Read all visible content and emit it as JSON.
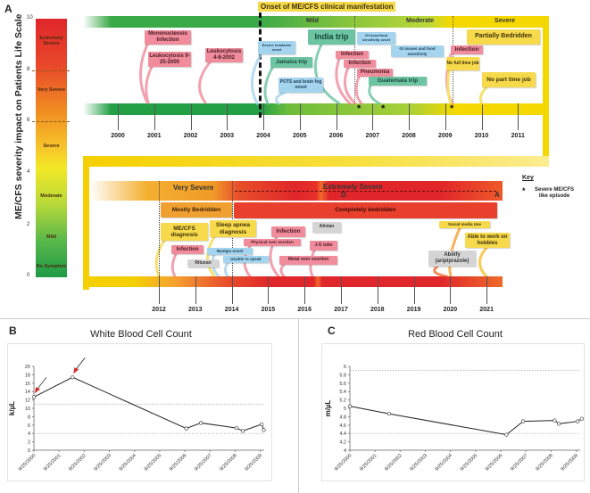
{
  "panel_a": {
    "label": "A",
    "y_axis_title": "ME/CFS severity impact on Patients Life Scale",
    "scale_ticks": [
      "10",
      "8",
      "6",
      "4",
      "2",
      "0"
    ],
    "scale_levels": [
      "Extremely Severe",
      "Very Severe",
      "Severe",
      "Moderate",
      "Mild",
      "No Symptom"
    ],
    "onset_label": "Onset of ME/CFS clinical manifestation",
    "top_phases": [
      "Mild",
      "Moderate",
      "Severe"
    ],
    "top_years": [
      "2000",
      "2001",
      "2002",
      "2003",
      "2004",
      "2005",
      "2006",
      "2007",
      "2008",
      "2009",
      "2010",
      "2011"
    ],
    "top_events": [
      "Mononucleosis Infection",
      "Leukocytosis 9-25-2000",
      "Leukocytosis 4-8-2002",
      "Severe headache onset",
      "Jamaica trip",
      "POTS and brain fog onset",
      "India trip",
      "GI issue/food sensitivity onset",
      "Infection",
      "Infection",
      "Pneumonia",
      "GI issues and food sensitivity",
      "Guatemala trip",
      "Infection",
      "No full time job",
      "Partially Bedridden",
      "No part time job"
    ],
    "bottom_phases": [
      "Very Severe",
      "Extremely Severe"
    ],
    "bottom_phase_marks": [
      "D",
      "A"
    ],
    "bottom_status": [
      "Mostly Bedridden",
      "Completely bedridden"
    ],
    "bottom_years": [
      "2012",
      "2013",
      "2014",
      "2015",
      "2016",
      "2017",
      "2018",
      "2019",
      "2020",
      "2021"
    ],
    "bottom_events": [
      "ME/CFS diagnosis",
      "Sleep apnea diagnosis",
      "Infection",
      "Myalgia onset",
      "Unable to speak",
      "Rituxan",
      "Physical over exertion",
      "Infection",
      "Ativian",
      "J-G tube",
      "Metal over exertion",
      "Social media Use",
      "Able to work on hobbies",
      "Abilify (aripiprazole)"
    ],
    "episode_marker": "*",
    "key": {
      "title": "Key",
      "symbol": "*",
      "text": "Severe ME/CFS like episode"
    },
    "colors": {
      "mild": "#3aaa48",
      "moderate": "#a8d03a",
      "severe": "#f5d400",
      "very_severe": "#f09a28",
      "extremely_severe": "#e0262a"
    }
  },
  "chart_data": [
    {
      "panel": "B",
      "type": "line",
      "title": "White Blood Cell Count",
      "ylabel": "k/µL",
      "xlabel": "",
      "ylim": [
        0,
        20
      ],
      "yticks": [
        "0",
        "2",
        "4",
        "6",
        "8",
        "10",
        "12",
        "14",
        "16",
        "18",
        "20"
      ],
      "xticks": [
        "9/25/2000",
        "9/25/2001",
        "9/25/2002",
        "9/25/2003",
        "9/25/2004",
        "9/25/2005",
        "9/25/2006",
        "9/25/2007",
        "9/25/2008",
        "9/25/2009"
      ],
      "reference_lines": [
        11,
        4
      ],
      "points": [
        {
          "x": "2000-09-25",
          "y": 12.7
        },
        {
          "x": "2002-04-08",
          "y": 17.4
        },
        {
          "x": "2006-10",
          "y": 5.2
        },
        {
          "x": "2007-05",
          "y": 6.5
        },
        {
          "x": "2008-10",
          "y": 5.3
        },
        {
          "x": "2009-01",
          "y": 4.6
        },
        {
          "x": "2009-10",
          "y": 6.2
        },
        {
          "x": "2009-11",
          "y": 4.8
        }
      ],
      "annotations": [
        "red arrow at 9/25/2000",
        "red arrow at 4/8/2002"
      ]
    },
    {
      "panel": "C",
      "type": "line",
      "title": "Red Blood Cell Count",
      "ylabel": "m/µL",
      "xlabel": "",
      "ylim": [
        4,
        6
      ],
      "yticks": [
        "4",
        "4.2",
        "4.4",
        "4.6",
        "4.8",
        "5",
        "5.2",
        "5.4",
        "5.6",
        "5.8",
        "6"
      ],
      "xticks": [
        "9/25/2000",
        "9/25/2001",
        "9/25/2002",
        "9/25/2003",
        "9/25/2004",
        "9/25/2005",
        "9/25/2006",
        "9/25/2007",
        "9/25/2008",
        "9/25/2009"
      ],
      "reference_lines": [
        5.9,
        4.4
      ],
      "points": [
        {
          "x": "2000-09-25",
          "y": 5.05
        },
        {
          "x": "2002-04",
          "y": 4.87
        },
        {
          "x": "2006-12",
          "y": 4.37
        },
        {
          "x": "2007-08",
          "y": 4.69
        },
        {
          "x": "2008-11",
          "y": 4.71
        },
        {
          "x": "2009-01",
          "y": 4.63
        },
        {
          "x": "2009-10",
          "y": 4.69
        },
        {
          "x": "2009-12",
          "y": 4.75
        }
      ]
    }
  ]
}
